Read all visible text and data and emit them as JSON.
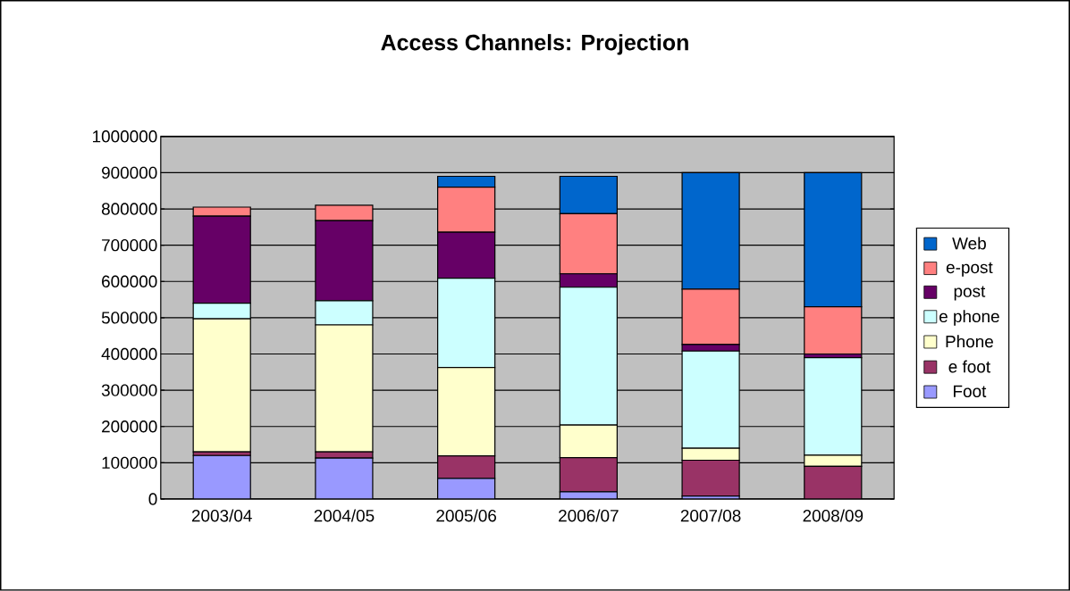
{
  "chart_data": {
    "type": "bar",
    "title": "Access Channels: Projection",
    "stacked": true,
    "categories": [
      "2003/04",
      "2004/05",
      "2005/06",
      "2006/07",
      "2007/08",
      "2008/09"
    ],
    "series": [
      {
        "name": "Foot",
        "color": "#9999ff",
        "values": [
          120000,
          113000,
          57000,
          20000,
          8000,
          null
        ]
      },
      {
        "name": "e foot",
        "color": "#993366",
        "values": [
          10000,
          17000,
          62000,
          94000,
          99000,
          90000
        ]
      },
      {
        "name": "Phone",
        "color": "#ffffcc",
        "values": [
          367000,
          350000,
          244000,
          90000,
          33000,
          31000
        ]
      },
      {
        "name": "e phone",
        "color": "#ccffff",
        "values": [
          43000,
          67000,
          246000,
          380000,
          268000,
          269000
        ]
      },
      {
        "name": "post",
        "color": "#660066",
        "values": [
          240000,
          221000,
          127000,
          37000,
          18000,
          10000
        ]
      },
      {
        "name": "e-post",
        "color": "#ff8080",
        "values": [
          25000,
          42000,
          124000,
          166000,
          153000,
          130000
        ]
      },
      {
        "name": "Web",
        "color": "#0066cc",
        "values": [
          0,
          0,
          30000,
          103000,
          321000,
          370000
        ]
      }
    ],
    "ylim": [
      0,
      1000000
    ],
    "yticks": [
      0,
      100000,
      200000,
      300000,
      400000,
      500000,
      600000,
      700000,
      800000,
      900000,
      1000000
    ],
    "grid": "y",
    "legend": "right"
  }
}
